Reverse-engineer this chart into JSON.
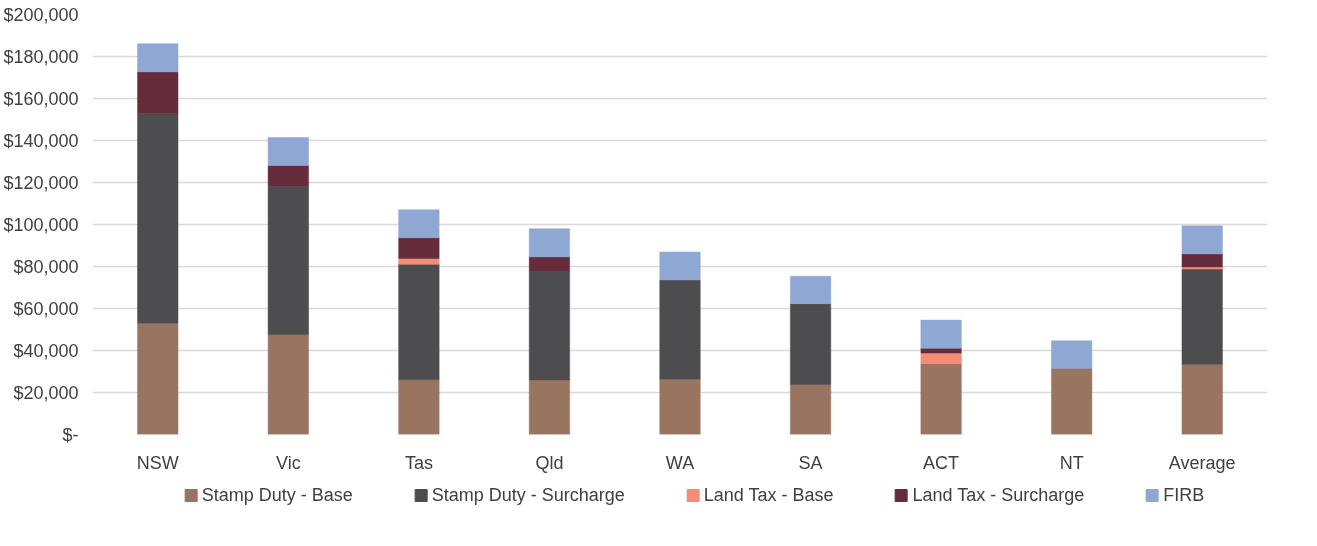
{
  "chart_data": {
    "type": "bar",
    "stacked": true,
    "categories": [
      "NSW",
      "Vic",
      "Tas",
      "Qld",
      "WA",
      "SA",
      "ACT",
      "NT",
      "Average"
    ],
    "series": [
      {
        "name": "Stamp Duty - Base",
        "color": "#987461",
        "values": [
          53000,
          47600,
          26100,
          26000,
          26300,
          23800,
          33700,
          31500,
          33400
        ]
      },
      {
        "name": "Stamp Duty - Surcharge",
        "color": "#4d4d4f",
        "values": [
          99700,
          70600,
          55000,
          51600,
          47300,
          38500,
          null,
          null,
          45400
        ]
      },
      {
        "name": "Land Tax - Base",
        "color": "#f58c74",
        "values": [
          null,
          null,
          2700,
          null,
          null,
          null,
          5100,
          null,
          1000
        ]
      },
      {
        "name": "Land Tax - Surcharge",
        "color": "#652c3c",
        "values": [
          20000,
          9900,
          9900,
          7000,
          null,
          null,
          2300,
          null,
          6200
        ]
      },
      {
        "name": "FIRB",
        "color": "#8fa7d3",
        "values": [
          13400,
          13300,
          13300,
          13400,
          13300,
          13100,
          13400,
          13100,
          13400
        ]
      }
    ],
    "ylim": [
      0,
      200000
    ],
    "yticks": [
      {
        "value": 0,
        "label": "$-"
      },
      {
        "value": 20000,
        "label": "$20,000"
      },
      {
        "value": 40000,
        "label": "$40,000"
      },
      {
        "value": 60000,
        "label": "$60,000"
      },
      {
        "value": 80000,
        "label": "$80,000"
      },
      {
        "value": 100000,
        "label": "$100,000"
      },
      {
        "value": 120000,
        "label": "$120,000"
      },
      {
        "value": 140000,
        "label": "$140,000"
      },
      {
        "value": 160000,
        "label": "$160,000"
      },
      {
        "value": 180000,
        "label": "$180,000"
      },
      {
        "value": 200000,
        "label": "$200,000"
      }
    ],
    "grid": "y",
    "legend": "bottom"
  }
}
